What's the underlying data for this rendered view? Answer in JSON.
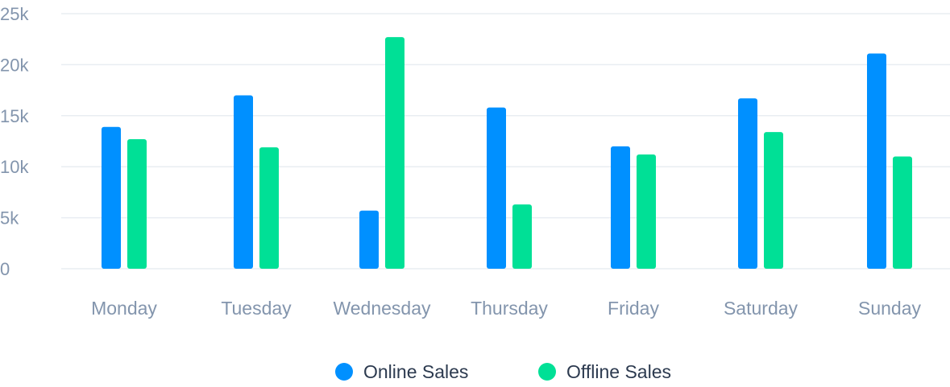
{
  "chart_data": {
    "type": "bar",
    "categories": [
      "Monday",
      "Tuesday",
      "Wednesday",
      "Thursday",
      "Friday",
      "Saturday",
      "Sunday"
    ],
    "series": [
      {
        "name": "Online Sales",
        "color": "#0090ff",
        "values": [
          13900,
          17000,
          5700,
          15800,
          12000,
          16700,
          21100
        ]
      },
      {
        "name": "Offline Sales",
        "color": "#00e096",
        "values": [
          12700,
          11900,
          22700,
          6300,
          11200,
          13400,
          11000
        ]
      }
    ],
    "yticks": [
      0,
      5000,
      10000,
      15000,
      20000,
      25000
    ],
    "ytick_labels": [
      "0",
      "5k",
      "10k",
      "15k",
      "20k",
      "25k"
    ],
    "ylim": [
      0,
      25000
    ],
    "grid": true,
    "legend_position": "bottom-center"
  }
}
